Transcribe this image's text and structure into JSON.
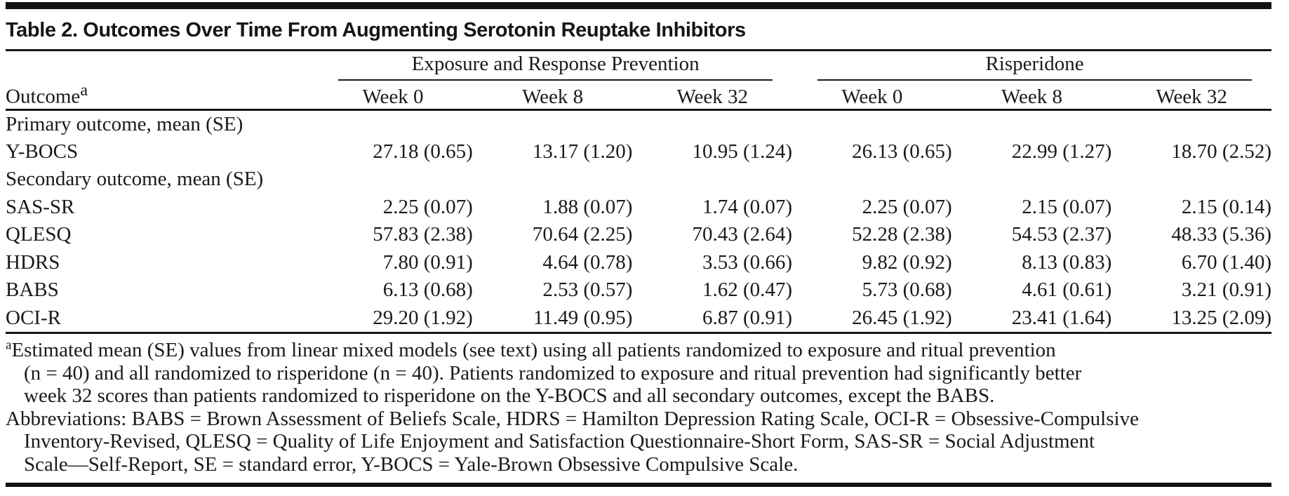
{
  "title": "Table 2. Outcomes Over Time From Augmenting Serotonin Reuptake Inhibitors",
  "table": {
    "outcome_header": {
      "label": "Outcome",
      "superscript": "a"
    },
    "group_headers": [
      "Exposure and Response Prevention",
      "Risperidone"
    ],
    "week_headers": [
      "Week 0",
      "Week 8",
      "Week 32",
      "Week 0",
      "Week 8",
      "Week 32"
    ],
    "rows": [
      {
        "type": "section",
        "label": "Primary outcome, mean (SE)"
      },
      {
        "type": "data",
        "label": "Y-BOCS",
        "values": [
          "27.18 (0.65)",
          "13.17 (1.20)",
          "10.95 (1.24)",
          "26.13 (0.65)",
          "22.99 (1.27)",
          "18.70 (2.52)"
        ]
      },
      {
        "type": "section",
        "label": "Secondary outcome,  mean (SE)"
      },
      {
        "type": "data",
        "label": "SAS-SR",
        "values": [
          "2.25 (0.07)",
          "1.88 (0.07)",
          "1.74 (0.07)",
          "2.25 (0.07)",
          "2.15 (0.07)",
          "2.15 (0.14)"
        ]
      },
      {
        "type": "data",
        "label": "QLESQ",
        "values": [
          "57.83 (2.38)",
          "70.64 (2.25)",
          "70.43 (2.64)",
          "52.28 (2.38)",
          "54.53 (2.37)",
          "48.33 (5.36)"
        ]
      },
      {
        "type": "data",
        "label": "HDRS",
        "values": [
          "7.80 (0.91)",
          "4.64 (0.78)",
          "3.53 (0.66)",
          "9.82 (0.92)",
          "8.13 (0.83)",
          "6.70 (1.40)"
        ]
      },
      {
        "type": "data",
        "label": "BABS",
        "values": [
          "6.13 (0.68)",
          "2.53 (0.57)",
          "1.62 (0.47)",
          "5.73 (0.68)",
          "4.61 (0.61)",
          "3.21 (0.91)"
        ]
      },
      {
        "type": "data",
        "label": "OCI-R",
        "values": [
          "29.20 (1.92)",
          "11.49 (0.95)",
          "6.87 (0.91)",
          "26.45 (1.92)",
          "23.41 (1.64)",
          "13.25 (2.09)"
        ]
      }
    ]
  },
  "footnotes": {
    "marker": "a",
    "note_lines": [
      "Estimated mean (SE) values from linear mixed models (see text) using all patients randomized to exposure and ritual prevention",
      "(n = 40) and all randomized to risperidone (n = 40). Patients randomized to exposure and ritual prevention had significantly better",
      "week 32 scores than patients randomized to risperidone on the Y-BOCS and all secondary outcomes, except the BABS."
    ],
    "abbrev_lines": [
      "Abbreviations: BABS = Brown Assessment of Beliefs Scale, HDRS = Hamilton Depression Rating Scale, OCI-R = Obsessive-Compulsive",
      "Inventory-Revised, QLESQ = Quality of Life Enjoyment and Satisfaction Questionnaire-Short Form, SAS-SR = Social Adjustment",
      "Scale—Self-Report, SE = standard error, Y-BOCS = Yale-Brown Obsessive Compulsive Scale."
    ]
  }
}
